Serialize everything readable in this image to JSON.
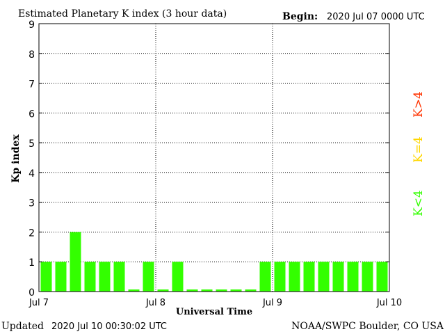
{
  "header": {
    "title": "Estimated Planetary K index (3 hour data)",
    "begin_label": "Begin:",
    "begin_value": "2020 Jul 07 0000 UTC"
  },
  "footer": {
    "updated_label": "Updated",
    "updated_value": "2020 Jul 10 00:30:02 UTC",
    "credit": "NOAA/SWPC Boulder, CO USA"
  },
  "legend": {
    "items": [
      {
        "label": "K>4",
        "color": "#ff3300"
      },
      {
        "label": "K=4",
        "color": "#ffd700"
      },
      {
        "label": "K<4",
        "color": "#33ff00"
      }
    ]
  },
  "chart_data": {
    "type": "bar",
    "ylabel": "Kp index",
    "xlabel": "Universal Time",
    "ylim": [
      0,
      9
    ],
    "yticks": [
      0,
      1,
      2,
      3,
      4,
      5,
      6,
      7,
      8,
      9
    ],
    "xlim": [
      0,
      24
    ],
    "xticks": [
      {
        "x": 0,
        "label": "Jul 7"
      },
      {
        "x": 8,
        "label": "Jul 8"
      },
      {
        "x": 16,
        "label": "Jul 9"
      },
      {
        "x": 24,
        "label": "Jul 10"
      }
    ],
    "grid": true,
    "bar_color": "#33ff00",
    "values": [
      1,
      1,
      2,
      1,
      1,
      1,
      0.07,
      1,
      0.07,
      1,
      0.07,
      0.07,
      0.07,
      0.07,
      0.07,
      1,
      1,
      1,
      1,
      1,
      1,
      1,
      1,
      1
    ]
  }
}
